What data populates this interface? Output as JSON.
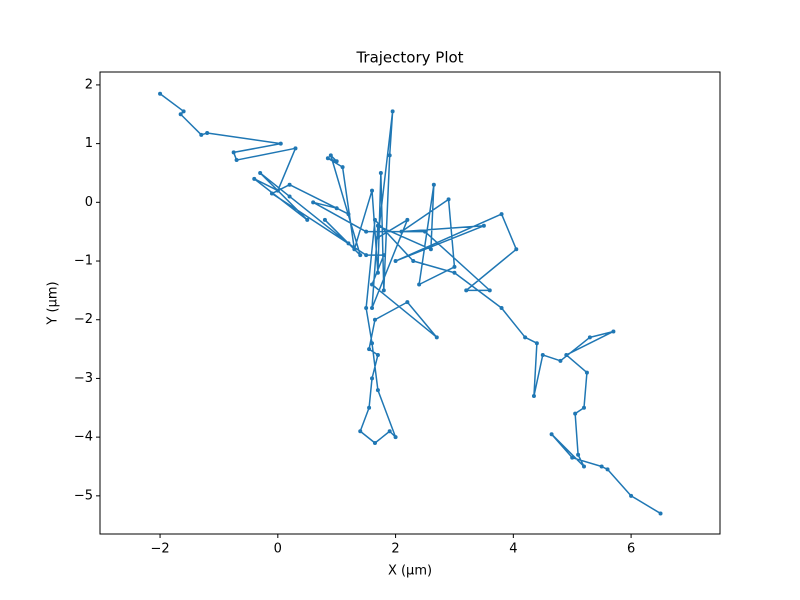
{
  "chart_data": {
    "type": "line",
    "title": "Trajectory Plot",
    "xlabel": "X (μm)",
    "ylabel": "Y (μm)",
    "xlim": [
      -3.02,
      7.51
    ],
    "ylim": [
      -5.65,
      2.22
    ],
    "xticks": [
      {
        "value": -2,
        "label": "−2"
      },
      0,
      2,
      4,
      6
    ],
    "yticks": [
      {
        "value": -5,
        "label": "−5"
      },
      {
        "value": -4,
        "label": "−4"
      },
      {
        "value": -3,
        "label": "−3"
      },
      {
        "value": -2,
        "label": "−2"
      },
      {
        "value": -1,
        "label": "−1"
      },
      0,
      1,
      2
    ],
    "series": [
      {
        "color": "#1f77b4",
        "x": [
          -2.0,
          -1.6,
          -1.65,
          -1.3,
          -1.2,
          0.05,
          -0.75,
          -0.7,
          0.3,
          0.0,
          -0.4,
          0.5,
          -0.3,
          0.2,
          1.2,
          0.8,
          1.4,
          0.9,
          1.0,
          0.85,
          1.1,
          1.3,
          1.6,
          1.7,
          1.75,
          1.8,
          1.9,
          1.95,
          1.7,
          2.2,
          1.6,
          1.7,
          2.6,
          2.65,
          2.4,
          3.0,
          2.9,
          2.1,
          3.5,
          2.0,
          3.8,
          4.05,
          3.2,
          3.6,
          2.5,
          1.5,
          0.6,
          1.0,
          1.2,
          0.2,
          -0.1,
          1.5,
          1.8,
          1.6,
          2.7,
          2.2,
          1.65,
          1.55,
          1.7,
          1.6,
          1.55,
          1.4,
          1.65,
          1.9,
          2.0,
          1.7,
          1.6,
          1.5,
          1.65,
          2.3,
          3.0,
          3.8,
          4.2,
          4.4,
          4.35,
          4.5,
          4.8,
          5.3,
          5.7,
          4.9,
          5.25,
          5.2,
          5.05,
          5.1,
          5.2,
          4.65,
          5.0,
          5.5,
          5.6,
          6.0,
          6.5
        ],
        "values": [
          1.85,
          1.55,
          1.5,
          1.15,
          1.18,
          1.0,
          0.85,
          0.72,
          0.92,
          0.2,
          0.4,
          -0.3,
          0.5,
          0.1,
          -0.7,
          -0.3,
          -0.9,
          0.8,
          0.7,
          0.75,
          0.6,
          -0.8,
          0.2,
          -1.2,
          0.5,
          -1.5,
          0.8,
          1.55,
          -0.6,
          -0.3,
          -1.8,
          -0.4,
          -0.8,
          0.3,
          -1.4,
          -1.1,
          0.05,
          -0.5,
          -0.4,
          -1.0,
          -0.2,
          -0.8,
          -1.5,
          -1.5,
          -0.5,
          -0.5,
          0.0,
          -0.1,
          -0.2,
          0.3,
          0.15,
          -0.9,
          -0.9,
          -1.4,
          -2.3,
          -1.7,
          -2.0,
          -2.5,
          -2.6,
          -3.0,
          -3.5,
          -3.9,
          -4.1,
          -3.9,
          -4.0,
          -3.2,
          -2.4,
          -1.8,
          -0.3,
          -1.0,
          -1.2,
          -1.8,
          -2.3,
          -2.4,
          -3.3,
          -2.6,
          -2.7,
          -2.3,
          -2.2,
          -2.6,
          -2.9,
          -3.5,
          -3.6,
          -4.3,
          -4.5,
          -3.95,
          -4.35,
          -4.5,
          -4.55,
          -5.0,
          -5.3
        ]
      }
    ]
  }
}
